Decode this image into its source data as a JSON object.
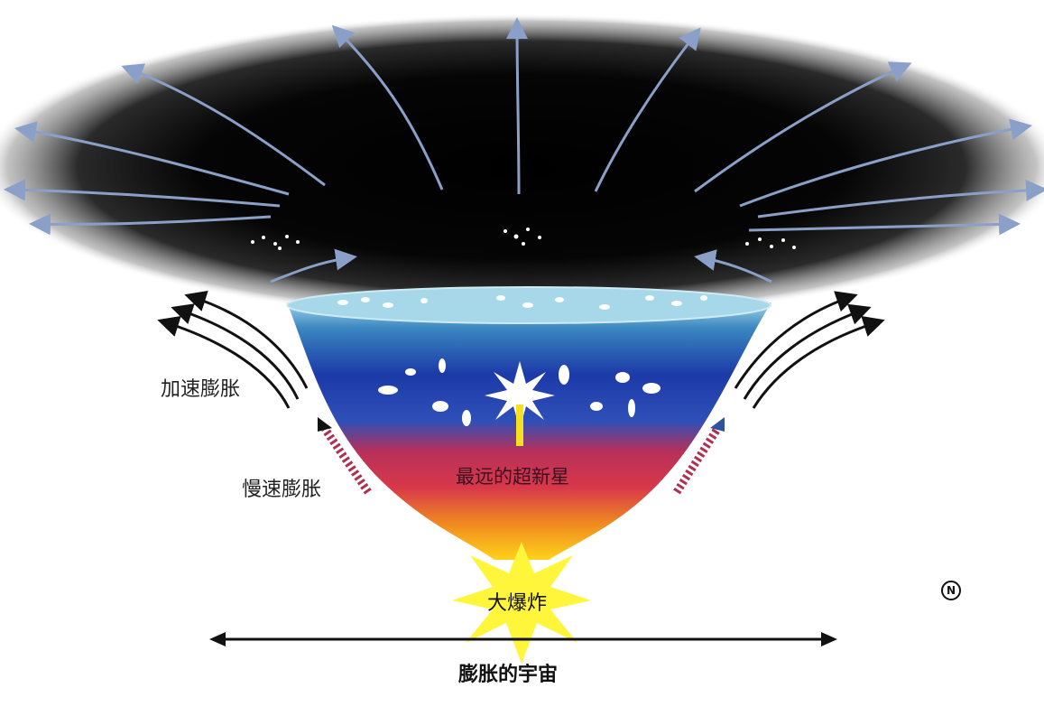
{
  "labels": {
    "accelerated_expansion": "加速膨胀",
    "slow_expansion": "慢速膨胀",
    "farthest_supernova": "最远的超新星",
    "big_bang": "大爆炸",
    "expanding_universe": "膨胀的宇宙",
    "corner_mark": "N"
  },
  "colors": {
    "space_black": "#050505",
    "band_cyan": "#6fb8d8",
    "band_blue": "#1f3fa8",
    "band_red": "#c0304a",
    "band_orange": "#f08a20",
    "band_yellow": "#ffd21a",
    "arrow_blue": "#8aa0c8",
    "arrow_black": "#111111",
    "arrow_red": "#b03050"
  }
}
